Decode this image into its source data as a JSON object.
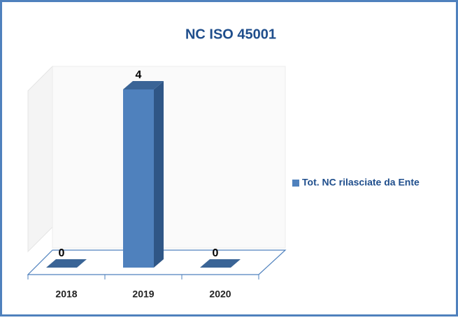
{
  "chart_data": {
    "type": "bar3d",
    "title": "NC ISO 45001",
    "categories": [
      "2018",
      "2019",
      "2020"
    ],
    "series": [
      {
        "name": "Tot. NC rilasciate da Ente",
        "color": "#4f81bd",
        "values": [
          0,
          4,
          0
        ]
      }
    ]
  }
}
